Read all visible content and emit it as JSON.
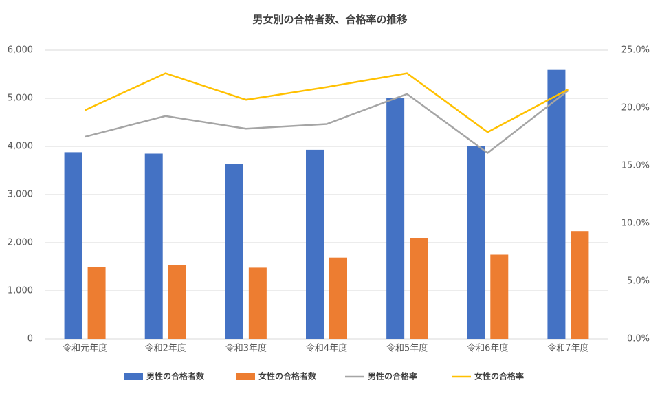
{
  "chart_data": {
    "type": "bar-line",
    "title": "男女別の合格者数、合格率の推移",
    "categories": [
      "令和元年度",
      "令和2年度",
      "令和3年度",
      "令和4年度",
      "令和5年度",
      "令和6年度",
      "令和7年度"
    ],
    "series": [
      {
        "name": "男性の合格者数",
        "type": "bar",
        "color": "#4472c4",
        "values": [
          3880,
          3850,
          3640,
          3930,
          5000,
          4000,
          5590
        ]
      },
      {
        "name": "女性の合格者数",
        "type": "bar",
        "color": "#ed7d31",
        "values": [
          1490,
          1530,
          1480,
          1690,
          2100,
          1750,
          2240
        ]
      },
      {
        "name": "男性の合格率",
        "type": "line",
        "axis": "y2",
        "color": "#a5a5a5",
        "values": [
          17.5,
          19.3,
          18.2,
          18.6,
          21.2,
          16.1,
          21.5
        ]
      },
      {
        "name": "女性の合格率",
        "type": "line",
        "axis": "y2",
        "color": "#ffc000",
        "values": [
          19.8,
          23.0,
          20.7,
          21.8,
          23.0,
          17.9,
          21.6
        ]
      }
    ],
    "ylim": [
      0,
      6000
    ],
    "yticks": [
      0,
      {
        "value": 1000,
        "label": "1,000"
      },
      {
        "value": 2000,
        "label": "2,000"
      },
      {
        "value": 3000,
        "label": "3,000"
      },
      {
        "value": 4000,
        "label": "4,000"
      },
      {
        "value": 5000,
        "label": "5,000"
      },
      {
        "value": 6000,
        "label": "6,000"
      }
    ],
    "y2lim": [
      0,
      25
    ],
    "y2ticks": [
      {
        "value": 0,
        "label": "0.0%"
      },
      {
        "value": 5,
        "label": "5.0%"
      },
      {
        "value": 10,
        "label": "10.0%"
      },
      {
        "value": 15,
        "label": "15.0%"
      },
      {
        "value": 20,
        "label": "20.0%"
      },
      {
        "value": 25,
        "label": "25.0%"
      }
    ],
    "grid": true,
    "legend": "bottom"
  }
}
